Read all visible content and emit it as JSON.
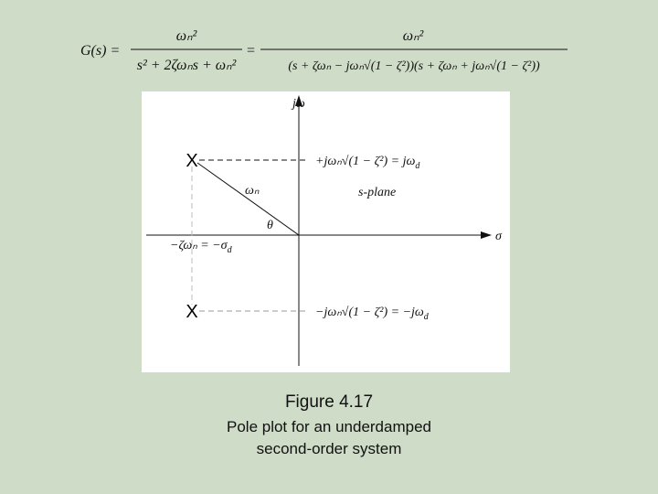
{
  "formula": {
    "lhs": "G(s) =",
    "numerator_1": "ωₙ²",
    "denominator_1": "s² + 2ζωₙs + ωₙ²",
    "equals": "=",
    "numerator_2": "ωₙ²",
    "denominator_2": "(s + ζωₙ − jωₙ√(1 − ζ²))(s + ζωₙ + jωₙ√(1 − ζ²))"
  },
  "diagram": {
    "imag_axis": "jω",
    "real_axis": "σ",
    "pole_upper": "X",
    "pole_lower": "X",
    "upper_label": {
      "main": "+jωₙ√(1 − ζ²) = jω",
      "sub": "d"
    },
    "lower_label": {
      "main": "−jωₙ√(1 − ζ²) = −jω",
      "sub": "d"
    },
    "real_part_label": {
      "main": "−ζωₙ = −σ",
      "sub": "d"
    },
    "magnitude_label": "ωₙ",
    "angle_label": "θ",
    "plane_label": "s-plane"
  },
  "caption": {
    "figure": "Figure 4.17",
    "lines": [
      "Pole plot for an underdamped",
      "second-order system"
    ]
  }
}
